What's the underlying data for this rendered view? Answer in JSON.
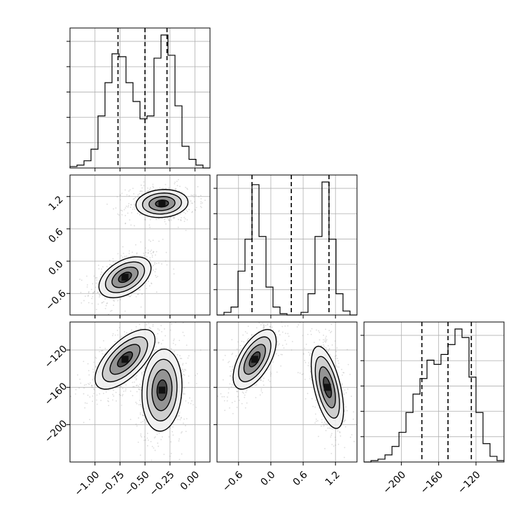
{
  "chart_data": [
    {
      "type": "histogram",
      "panel": "x-marginal",
      "xlim": [
        -1.25,
        0.15
      ],
      "bins": [
        -1.25,
        -1.18,
        -1.11,
        -1.04,
        -0.97,
        -0.9,
        -0.83,
        -0.76,
        -0.69,
        -0.62,
        -0.55,
        -0.48,
        -0.41,
        -0.34,
        -0.27,
        -0.2,
        -0.13,
        -0.06,
        0.01,
        0.08,
        0.15
      ],
      "counts": [
        0.01,
        0.02,
        0.05,
        0.13,
        0.36,
        0.59,
        0.79,
        0.77,
        0.59,
        0.46,
        0.34,
        0.36,
        0.76,
        0.92,
        0.78,
        0.43,
        0.15,
        0.06,
        0.02,
        0.0
      ],
      "quantile_lines": [
        -0.77,
        -0.5,
        -0.28
      ],
      "grid": true
    },
    {
      "type": "histogram",
      "panel": "y-marginal",
      "xlim": [
        -1.0,
        1.6
      ],
      "bins": [
        -1.0,
        -0.87,
        -0.74,
        -0.61,
        -0.48,
        -0.35,
        -0.22,
        -0.09,
        0.04,
        0.17,
        0.3,
        0.43,
        0.56,
        0.69,
        0.82,
        0.95,
        1.08,
        1.21,
        1.34,
        1.47,
        1.6
      ],
      "counts": [
        0.0,
        0.02,
        0.06,
        0.33,
        0.57,
        0.98,
        0.59,
        0.21,
        0.06,
        0.01,
        0.0,
        0.0,
        0.02,
        0.16,
        0.59,
        1.0,
        0.57,
        0.16,
        0.03,
        0.0
      ],
      "tick_labels": [
        "−0.6",
        "0.0",
        "0.6",
        "1.2"
      ],
      "tick_values": [
        -0.6,
        0.0,
        0.6,
        1.2
      ],
      "quantile_lines": [
        -0.35,
        0.38,
        1.08
      ],
      "grid": true
    },
    {
      "type": "histogram",
      "panel": "z-marginal",
      "xlim": [
        -240,
        -90
      ],
      "bins": [
        -240,
        -232.5,
        -225,
        -217.5,
        -210,
        -202.5,
        -195,
        -187.5,
        -180,
        -172.5,
        -165,
        -157.5,
        -150,
        -142.5,
        -135,
        -127.5,
        -120,
        -112.5,
        -105,
        -97.5,
        -90
      ],
      "counts": [
        0.0,
        0.01,
        0.02,
        0.05,
        0.11,
        0.21,
        0.35,
        0.48,
        0.59,
        0.72,
        0.69,
        0.76,
        0.83,
        0.94,
        0.88,
        0.6,
        0.35,
        0.13,
        0.04,
        0.01
      ],
      "tick_labels": [
        "−200",
        "−160",
        "−120"
      ],
      "tick_values": [
        -200,
        -160,
        -120
      ],
      "quantile_lines": [
        -178,
        -150,
        -125
      ],
      "grid": true
    },
    {
      "type": "scatter-density",
      "panel": "x-vs-y",
      "xlim": [
        -1.25,
        0.15
      ],
      "ylim": [
        -1.0,
        1.6
      ],
      "y_tick_labels": [
        "−0.6",
        "0.0",
        "0.6",
        "1.2"
      ],
      "y_tick_values": [
        -0.6,
        0.0,
        0.6,
        1.2
      ],
      "clusters": [
        {
          "center": [
            -0.7,
            -0.3
          ],
          "spread": [
            0.13,
            0.19
          ],
          "corr": 0.45
        },
        {
          "center": [
            -0.33,
            1.07
          ],
          "spread": [
            0.13,
            0.13
          ],
          "corr": 0.1
        }
      ],
      "grid": true
    },
    {
      "type": "scatter-density",
      "panel": "x-vs-z",
      "xlim": [
        -1.25,
        0.15
      ],
      "ylim": [
        -240,
        -90
      ],
      "x_tick_labels": [
        "−1.00",
        "−0.75",
        "−0.50",
        "−0.25",
        "0.00"
      ],
      "x_tick_values": [
        -1.0,
        -0.75,
        -0.5,
        -0.25,
        0.0
      ],
      "y_tick_labels": [
        "−120",
        "−160",
        "−200"
      ],
      "y_tick_values": [
        -120,
        -160,
        -200
      ],
      "clusters": [
        {
          "center": [
            -0.7,
            -130
          ],
          "spread": [
            0.15,
            16
          ],
          "corr": 0.65
        },
        {
          "center": [
            -0.33,
            -163
          ],
          "spread": [
            0.1,
            22
          ],
          "corr": 0.1
        }
      ],
      "grid": true
    },
    {
      "type": "scatter-density",
      "panel": "y-vs-z",
      "xlim": [
        -1.0,
        1.6
      ],
      "ylim": [
        -240,
        -90
      ],
      "x_tick_labels": [
        "−0.6",
        "0.0",
        "0.6",
        "1.2"
      ],
      "x_tick_values": [
        -0.6,
        0.0,
        0.6,
        1.2
      ],
      "clusters": [
        {
          "center": [
            -0.3,
            -130
          ],
          "spread": [
            0.2,
            16
          ],
          "corr": 0.6
        },
        {
          "center": [
            1.05,
            -160
          ],
          "spread": [
            0.15,
            22
          ],
          "corr": -0.55
        }
      ],
      "grid": true
    }
  ],
  "bottom_axis_labels": {
    "col1": [
      "−1.00",
      "−0.75",
      "−0.50",
      "−0.25",
      "0.00"
    ],
    "col2": [
      "−0.6",
      "0.0",
      "0.6",
      "1.2"
    ],
    "col3": [
      "−200",
      "−160",
      "−120"
    ]
  },
  "colors": {
    "axes": "#000000",
    "grid": "#b0b0b0",
    "scatter": "#9a9a9a",
    "density_levels": [
      "#f0f0f0",
      "#c8c8c8",
      "#8a8a8a",
      "#3a3a3a"
    ]
  }
}
